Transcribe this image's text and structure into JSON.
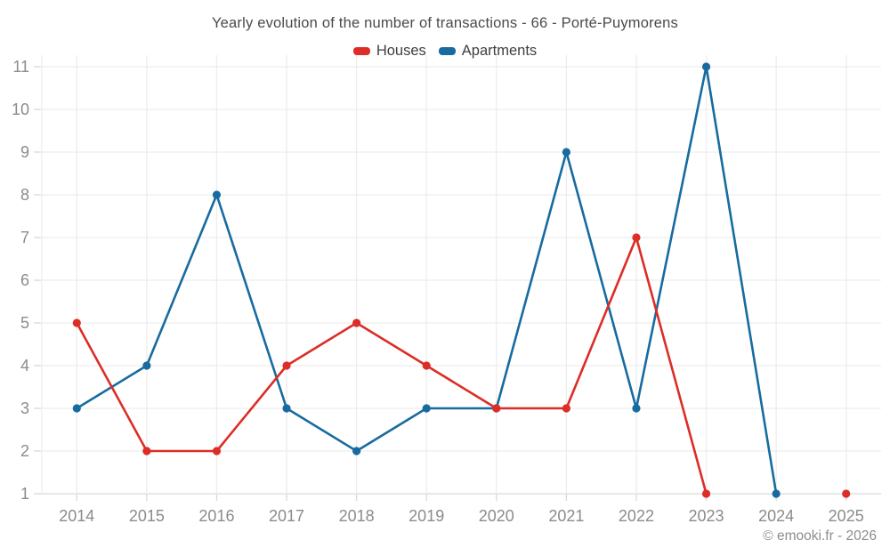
{
  "chart_data": {
    "type": "line",
    "title": "Yearly evolution of the number of transactions - 66 - Porté-Puymorens",
    "categories": [
      "2014",
      "2015",
      "2016",
      "2017",
      "2018",
      "2019",
      "2020",
      "2021",
      "2022",
      "2023",
      "2024",
      "2025"
    ],
    "series": [
      {
        "name": "Houses",
        "color": "#dc2d26",
        "values": [
          5,
          2,
          2,
          4,
          5,
          4,
          3,
          3,
          7,
          1,
          null,
          1
        ]
      },
      {
        "name": "Apartments",
        "color": "#176ba0",
        "values": [
          3,
          4,
          8,
          3,
          2,
          3,
          3,
          9,
          3,
          11,
          1,
          null
        ]
      }
    ],
    "xlabel": "",
    "ylabel": "",
    "ylim": [
      1,
      11
    ],
    "yticks": [
      1,
      2,
      3,
      4,
      5,
      6,
      7,
      8,
      9,
      10,
      11
    ],
    "grid": true,
    "legend_position": "top",
    "marker": "circle"
  },
  "footer": {
    "copyright": "© emooki.fr - 2026"
  },
  "style_colors": {
    "grid_line": "#ededed",
    "axis_line": "#d9d9d9",
    "tick_label": "#8b8b8b",
    "title_text": "#4a4a4a"
  }
}
